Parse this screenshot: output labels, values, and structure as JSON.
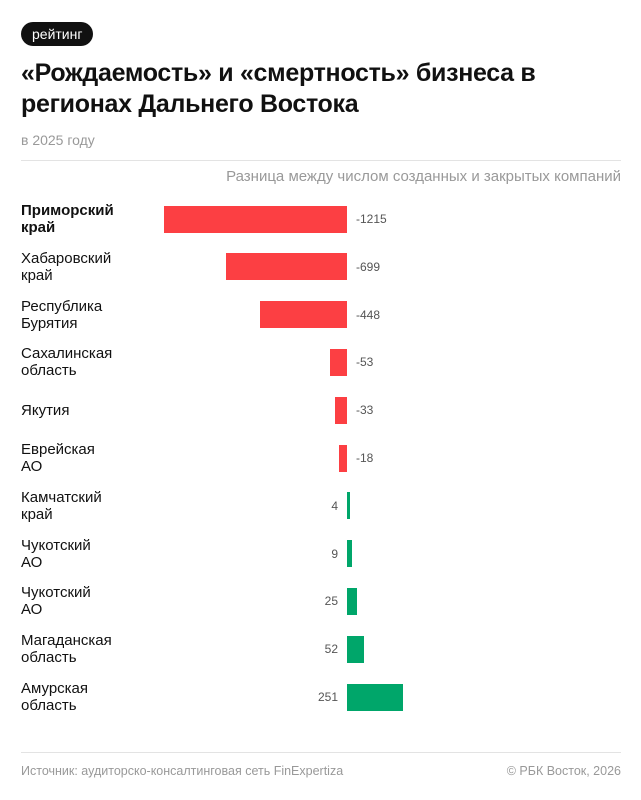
{
  "badge": "рейтинг",
  "title": "«Рождаемость» и «смертность» бизнеса в регионах Дальнего Востока",
  "subtitle": "в 2025 году",
  "footer": {
    "source": "Источник: аудиторско-консалтинговая сеть FinExpertiza",
    "copyright": "© РБК Восток, 2026"
  },
  "colors": {
    "negative": "#fc3f43",
    "positive": "#00a66a"
  },
  "chart_data": {
    "type": "bar",
    "orientation": "horizontal",
    "xlabel": "Разница между числом созданных и закрытых компаний",
    "categories": [
      "Приморский\nкрай",
      "Хабаровский\nкрай",
      "Республика\nБурятия",
      "Сахалинская\nобласть",
      "Якутия",
      "Еврейская\nАО",
      "Камчатский\nкрай",
      "Чукотский\nАО",
      "Чукотский\nАО",
      "Магаданская\nобласть",
      "Амурская\nобласть"
    ],
    "values": [
      -1215,
      -699,
      -448,
      -53,
      -33,
      -18,
      4,
      9,
      25,
      52,
      251
    ],
    "data_labels": [
      "-1215",
      "-699",
      "-448",
      "-53",
      "-33",
      "-18",
      "4",
      "9",
      "25",
      "52",
      "251"
    ],
    "grid": false
  }
}
